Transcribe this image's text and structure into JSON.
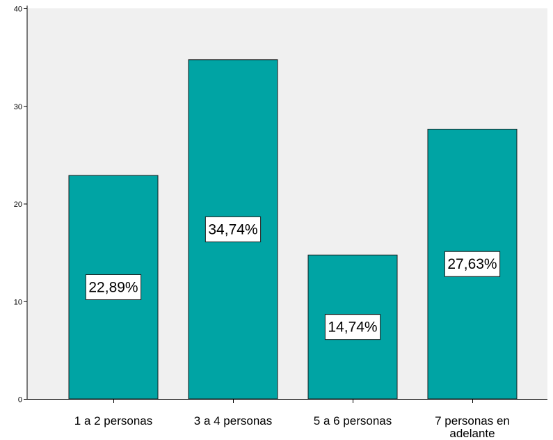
{
  "chart_data": {
    "type": "bar",
    "title": "",
    "xlabel": "",
    "ylabel": "",
    "categories": [
      "1 a 2 personas",
      "3 a 4 personas",
      "5 a 6 personas",
      "7 personas en adelante"
    ],
    "category_label_lines": [
      [
        "1 a 2 personas"
      ],
      [
        "3 a 4 personas"
      ],
      [
        "5 a 6 personas"
      ],
      [
        "7 personas en",
        "adelante"
      ]
    ],
    "values": [
      22.89,
      34.74,
      14.74,
      27.63
    ],
    "data_labels": [
      "22,89%",
      "34,74%",
      "14,74%",
      "27,63%"
    ],
    "ylim": [
      0,
      40
    ],
    "yticks": [
      0,
      10,
      20,
      30,
      40
    ],
    "grid": false,
    "colors": {
      "bar_fill": "#00A4A4",
      "bar_stroke": "#1a1a1a",
      "plot_background": "#F0F0F0",
      "axis": "#000000"
    }
  }
}
